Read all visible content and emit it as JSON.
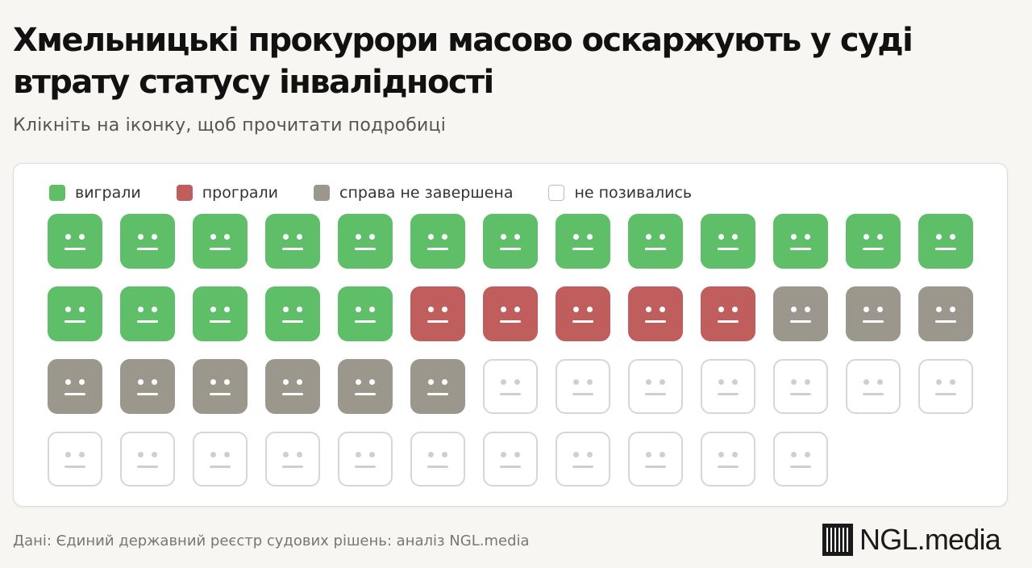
{
  "header": {
    "title": "Хмельницькі прокурори масово оскаржують у суді втрату статусу інвалідності",
    "subtitle": "Клікніть на іконку, щоб прочитати подробиці"
  },
  "footer": {
    "source": "Дані: Єдиний державний реєстр судових рішень: аналіз NGL.media",
    "logo_text": "NGL.media"
  },
  "colors": {
    "won": "#5fbf68",
    "lost": "#c05e5e",
    "pending": "#9c978c",
    "none_border": "#d6d6d6",
    "face_features_light": "#ffffff",
    "face_features_empty": "#cfcfcf"
  },
  "chart_data": {
    "type": "waffle",
    "icon": "neutral-face-icon",
    "columns": 13,
    "categories": [
      {
        "key": "won",
        "label": "виграли",
        "count": 18
      },
      {
        "key": "lost",
        "label": "програли",
        "count": 5
      },
      {
        "key": "pending",
        "label": "справа не завершена",
        "count": 9
      },
      {
        "key": "none",
        "label": "не позивались",
        "count": 18
      }
    ],
    "total": 50,
    "legend_position": "top-left"
  }
}
